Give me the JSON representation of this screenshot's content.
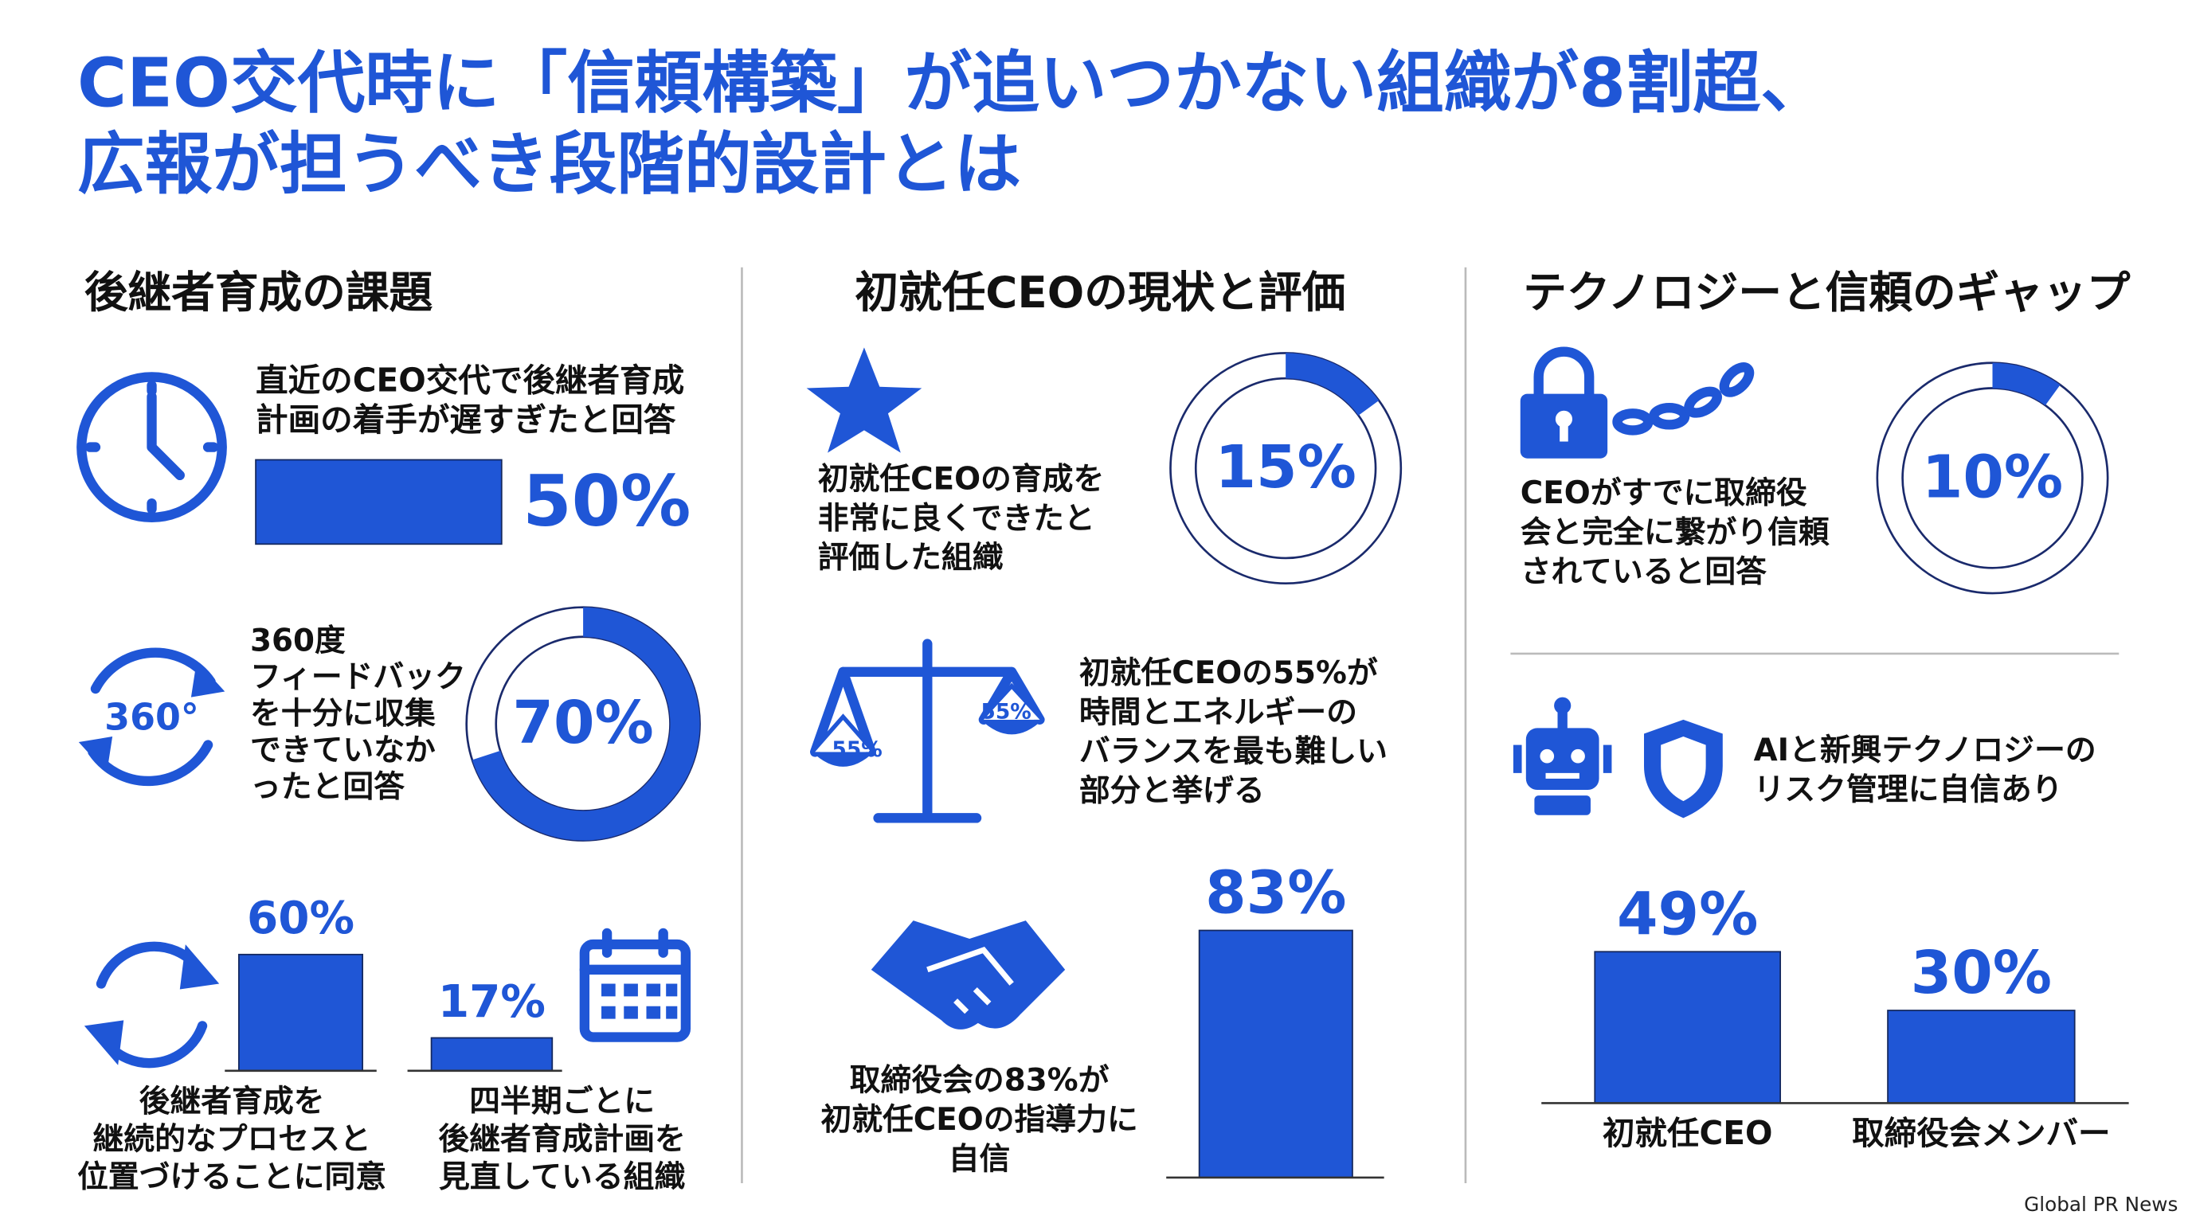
{
  "title": [
    "CEO交代時に「信頼構築」が追いつかない組織が8割超、",
    "広報が担うべき段階的設計とは"
  ],
  "source": "Global PR News",
  "color": "#1f56d6",
  "sections": [
    {
      "heading": "後継者育成の課題",
      "items": [
        {
          "type": "bar",
          "text": [
            "直近のCEO交代で後継者育成",
            "計画の着手が遅すぎたと回答"
          ],
          "values": [
            50
          ],
          "value_labels": [
            "50%"
          ],
          "ylim": [
            0,
            100
          ]
        },
        {
          "type": "donut",
          "icon_labels": [
            "360°"
          ],
          "text": [
            "360度",
            "フィードバック",
            "を十分に収集",
            "できていなか",
            "ったと回答"
          ],
          "values": [
            70
          ],
          "value_labels": [
            "70%"
          ],
          "ylim": [
            0,
            100
          ]
        },
        {
          "type": "bar",
          "categories": [
            [
              "後継者育成を",
              "継続的なプロセスと",
              "位置づけることに同意"
            ],
            [
              "四半期ごとに",
              "後継者育成計画を",
              "見直している組織"
            ]
          ],
          "values": [
            60,
            17
          ],
          "value_labels": [
            "60%",
            "17%"
          ],
          "ylim": [
            0,
            100
          ]
        }
      ]
    },
    {
      "heading": "初就任CEOの現状と評価",
      "items": [
        {
          "type": "donut",
          "text": [
            "初就任CEOの育成を",
            "非常に良くできたと",
            "評価した組織"
          ],
          "values": [
            15
          ],
          "value_labels": [
            "15%"
          ],
          "ylim": [
            0,
            100
          ]
        },
        {
          "type": "text",
          "icon_labels": [
            "55%",
            "55%"
          ],
          "text": [
            "初就任CEOの55%が",
            "時間とエネルギーの",
            "バランスを最も難しい",
            "部分と挙げる"
          ]
        },
        {
          "type": "bar",
          "text": [
            "取締役会の83%が",
            "初就任CEOの指導力に",
            "自信"
          ],
          "values": [
            83
          ],
          "value_labels": [
            "83%"
          ],
          "ylim": [
            0,
            100
          ]
        }
      ]
    },
    {
      "heading": "テクノロジーと信頼のギャップ",
      "items": [
        {
          "type": "donut",
          "text": [
            "CEOがすでに取締役",
            "会と完全に繋がり信頼",
            "されていると回答"
          ],
          "values": [
            10
          ],
          "value_labels": [
            "10%"
          ],
          "ylim": [
            0,
            100
          ]
        },
        {
          "type": "text",
          "text": [
            "AIと新興テクノロジーの",
            "リスク管理に自信あり"
          ]
        },
        {
          "type": "bar",
          "categories": [
            "初就任CEO",
            "取締役会メンバー"
          ],
          "values": [
            49,
            30
          ],
          "value_labels": [
            "49%",
            "30%"
          ],
          "ylim": [
            0,
            100
          ]
        }
      ]
    }
  ]
}
